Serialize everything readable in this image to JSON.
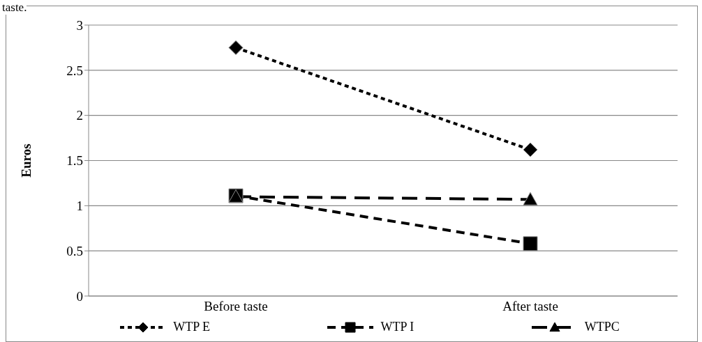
{
  "chart_data": {
    "type": "line",
    "ylabel": "Euros",
    "annotations": [
      "taste."
    ],
    "categories": [
      "Before taste",
      "After taste"
    ],
    "series": [
      {
        "name": "WTP E",
        "color": "#000000",
        "values": [
          2.75,
          1.62
        ],
        "marker": "diamond",
        "line_style": "dashed"
      },
      {
        "name": "WTP I",
        "color": "#000000",
        "values": [
          1.11,
          0.58
        ],
        "marker": "square",
        "line_style": "dashed"
      },
      {
        "name": "WTPC",
        "color": "#000000",
        "values": [
          1.1,
          1.07
        ],
        "marker": "triangle",
        "line_style": "dashed"
      }
    ],
    "ylim": [
      0,
      3
    ],
    "yticks": [
      0,
      0.5,
      1,
      1.5,
      2,
      2.5,
      3
    ],
    "grid": "y",
    "legend": "bottom"
  }
}
